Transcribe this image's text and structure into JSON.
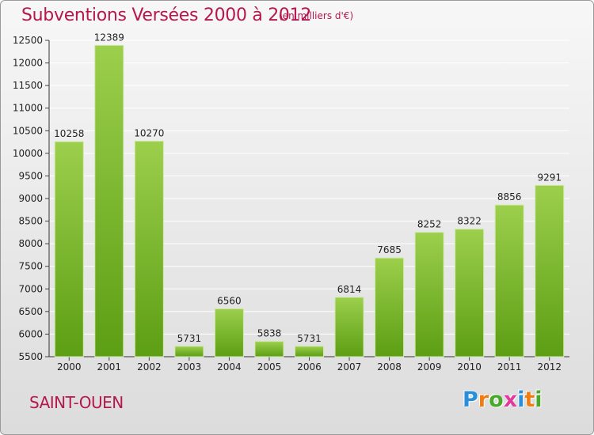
{
  "header": {
    "title": "Subventions Versées 2000 à 2012",
    "subtitle": "(en milliers d'€)"
  },
  "footer": {
    "city": "SAINT-OUEN",
    "logo_letters": [
      "P",
      "r",
      "o",
      "x",
      "i",
      "t",
      "i"
    ],
    "logo_colors": [
      "#2a8fd8",
      "#f07c12",
      "#4aa82a",
      "#e23a9a",
      "#2a8fd8",
      "#f07c12",
      "#4aa82a"
    ]
  },
  "colors": {
    "bar_top": "#9ccf4c",
    "bar_bottom": "#5c9e14",
    "text_accent": "#b5174f",
    "gridline": "#ffffff"
  },
  "chart_data": {
    "type": "bar",
    "title": "Subventions Versées 2000 à 2012",
    "subtitle": "(en milliers d'€)",
    "xlabel": "",
    "ylabel": "",
    "categories": [
      "2000",
      "2001",
      "2002",
      "2003",
      "2004",
      "2005",
      "2006",
      "2007",
      "2008",
      "2009",
      "2010",
      "2011",
      "2012"
    ],
    "values": [
      10258,
      12389,
      10270,
      5731,
      6560,
      5838,
      5731,
      6814,
      7685,
      8252,
      8322,
      8856,
      9291
    ],
    "ylim": [
      5500,
      12500
    ],
    "yticks": [
      5500,
      6000,
      6500,
      7000,
      7500,
      8000,
      8500,
      9000,
      9500,
      10000,
      10500,
      11000,
      11500,
      12000,
      12500
    ],
    "grid": true,
    "legend": "none"
  }
}
